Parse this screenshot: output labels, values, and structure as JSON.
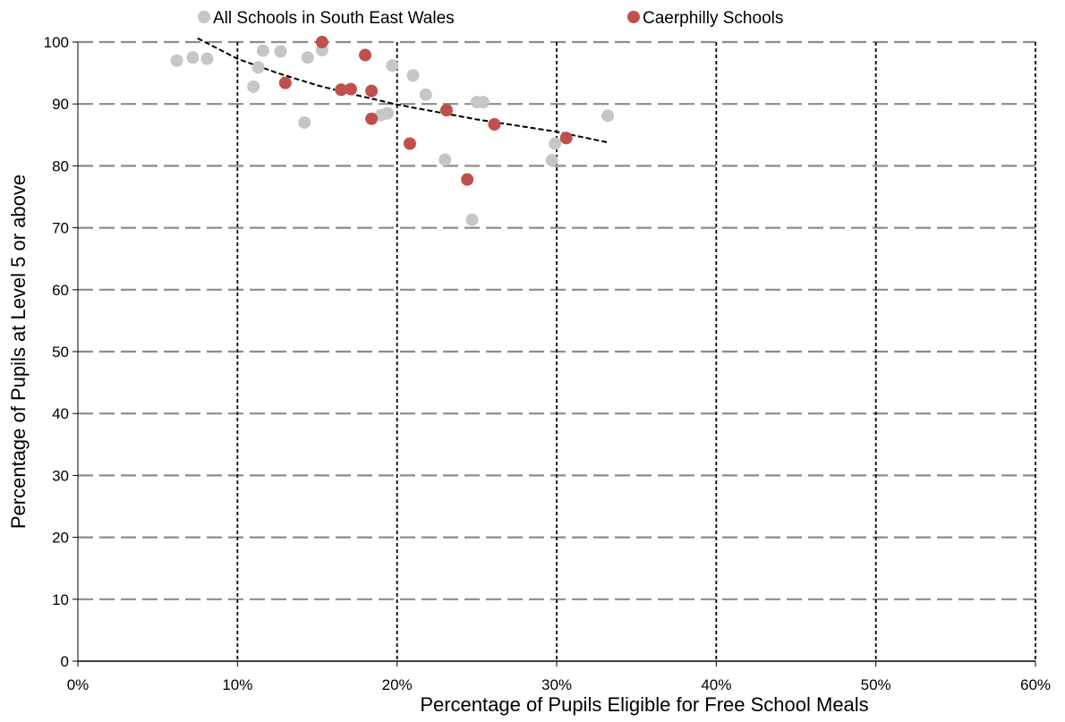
{
  "chart_data": {
    "type": "scatter",
    "title": "",
    "xlabel": "Percentage of Pupils Eligible for Free School Meals",
    "ylabel": "Percentage of Pupils at Level 5 or above",
    "xlim": [
      0,
      60
    ],
    "ylim": [
      0,
      100
    ],
    "x_ticks": [
      "0%",
      "10%",
      "20%",
      "30%",
      "40%",
      "50%",
      "60%"
    ],
    "y_ticks": [
      "0",
      "10",
      "20",
      "30",
      "40",
      "50",
      "60",
      "70",
      "80",
      "90",
      "100"
    ],
    "grid": "horizontal dashed, vertical dotted",
    "legend_position": "top",
    "series": [
      {
        "name": "All Schools in South East Wales",
        "color": "#c6c6c6",
        "points": [
          [
            6.2,
            97.0
          ],
          [
            7.2,
            97.5
          ],
          [
            8.1,
            97.3
          ],
          [
            11.0,
            92.8
          ],
          [
            11.3,
            95.9
          ],
          [
            11.6,
            98.6
          ],
          [
            12.7,
            98.5
          ],
          [
            14.2,
            87.0
          ],
          [
            14.4,
            97.5
          ],
          [
            15.3,
            98.7
          ],
          [
            16.5,
            92.3
          ],
          [
            19.0,
            88.2
          ],
          [
            19.4,
            88.5
          ],
          [
            19.7,
            96.2
          ],
          [
            21.0,
            94.6
          ],
          [
            21.8,
            91.5
          ],
          [
            23.0,
            81.0
          ],
          [
            24.7,
            71.3
          ],
          [
            25.0,
            90.3
          ],
          [
            25.4,
            90.3
          ],
          [
            29.7,
            80.9
          ],
          [
            29.9,
            83.6
          ],
          [
            33.2,
            88.1
          ]
        ]
      },
      {
        "name": "Caerphilly Schools",
        "color": "#c0504d",
        "points": [
          [
            13.0,
            93.4
          ],
          [
            15.3,
            100.0
          ],
          [
            16.5,
            92.3
          ],
          [
            17.1,
            92.4
          ],
          [
            18.0,
            97.9
          ],
          [
            18.4,
            92.1
          ],
          [
            18.4,
            87.6
          ],
          [
            20.8,
            83.6
          ],
          [
            23.1,
            89.0
          ],
          [
            24.4,
            77.8
          ],
          [
            26.1,
            86.7
          ],
          [
            30.6,
            84.5
          ]
        ]
      }
    ],
    "trendline": {
      "style": "dashed",
      "type": "power",
      "x_range": [
        7.5,
        33.2
      ],
      "points": [
        [
          7.5,
          100.6
        ],
        [
          10.0,
          97.3
        ],
        [
          12.5,
          95.0
        ],
        [
          15.0,
          93.0
        ],
        [
          17.5,
          91.4
        ],
        [
          20.0,
          89.9
        ],
        [
          22.5,
          88.7
        ],
        [
          25.0,
          87.5
        ],
        [
          27.5,
          86.5
        ],
        [
          30.0,
          85.5
        ],
        [
          33.2,
          83.8
        ]
      ]
    }
  }
}
